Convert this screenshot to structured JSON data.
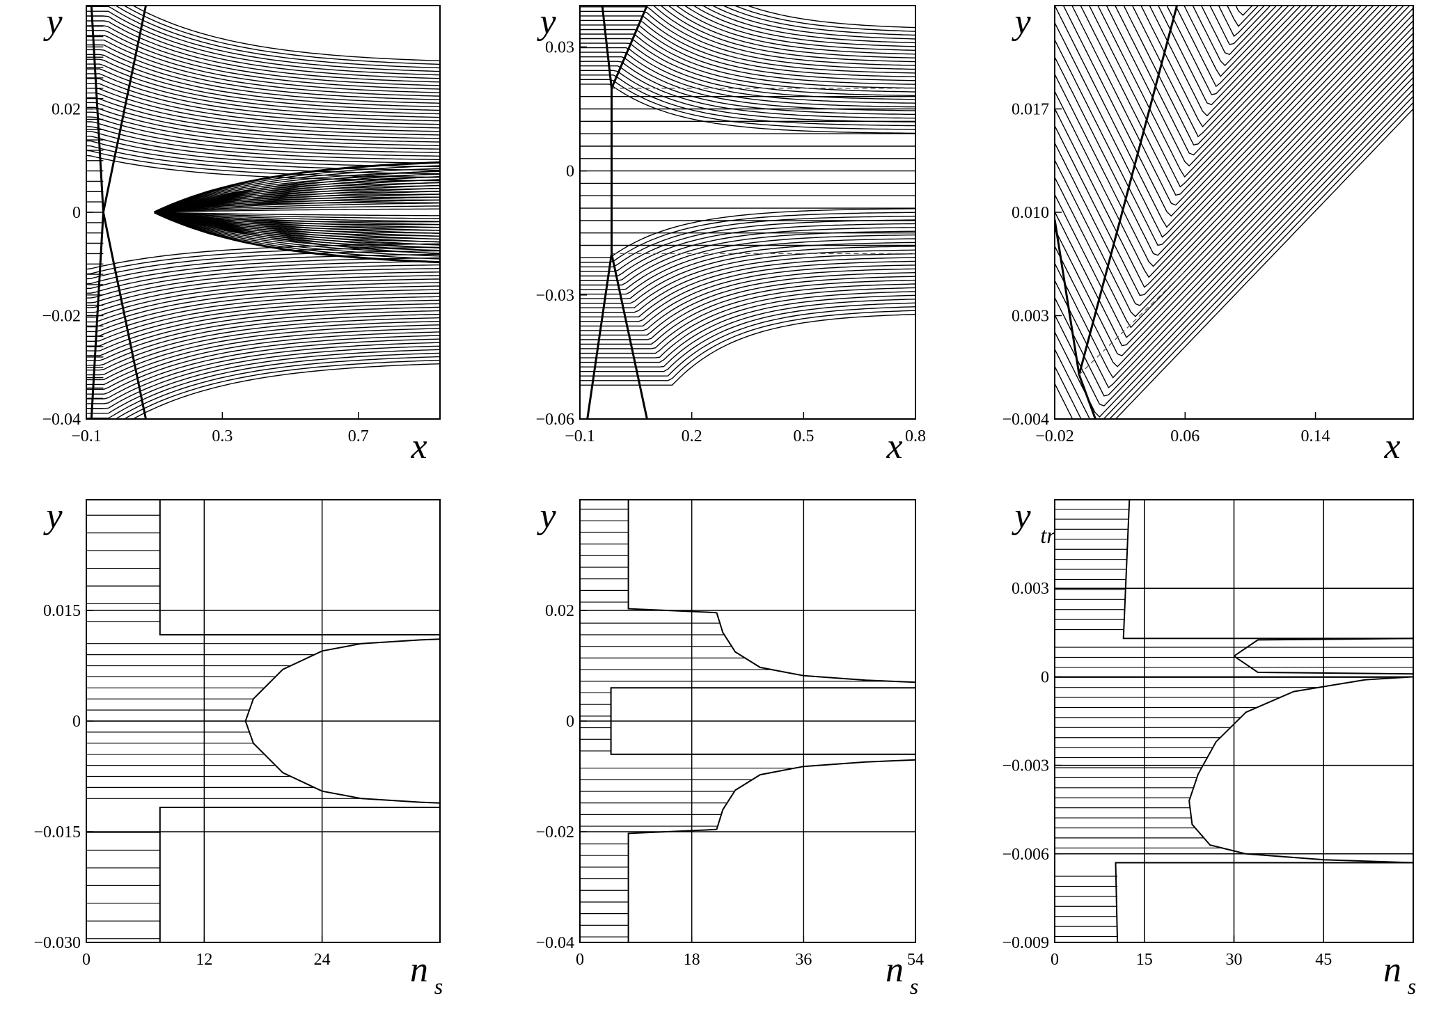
{
  "chart_data": [
    {
      "type": "line",
      "panel": "top-left",
      "xlabel": "x",
      "ylabel": "y",
      "xlim": [
        -0.1,
        0.94
      ],
      "ylim": [
        -0.04,
        0.04
      ],
      "xticks": [
        -0.1,
        0.3,
        0.7
      ],
      "xtick_labels": [
        "−0.1",
        "0.3",
        "0.7"
      ],
      "yticks": [
        -0.04,
        -0.02,
        0,
        0.02
      ],
      "ytick_labels": [
        "−0.04",
        "−0.02",
        "0",
        "0.02"
      ],
      "series": [
        {
          "values": "family of streamlines, y0 from -0.04 to 0.04; shock lines from (-0.08,0.04) to (-0.05,0) and from (0.05,0.04) to (-0.05,0); mirrored below"
        }
      ]
    },
    {
      "type": "line",
      "panel": "top-middle",
      "xlabel": "x",
      "ylabel": "y",
      "xlim": [
        -0.1,
        0.8
      ],
      "ylim": [
        -0.06,
        0.04
      ],
      "xticks": [
        -0.1,
        0.2,
        0.5,
        0.8
      ],
      "xtick_labels": [
        "−0.1",
        "0.2",
        "0.5",
        "0.8"
      ],
      "yticks": [
        -0.06,
        -0.03,
        0,
        0.03
      ],
      "ytick_labels": [
        "−0.06",
        "−0.03",
        "0",
        "0.03"
      ],
      "dashed_levels": [
        0.02,
        -0.02
      ],
      "series": [
        {
          "values": "streamlines; horizontal lines for |y|<0.02 after x=-0.015; curved upper/lower branches converging to y=+-0.009"
        }
      ]
    },
    {
      "type": "line",
      "panel": "top-right",
      "xlabel": "x",
      "ylabel": "y",
      "xlim": [
        -0.02,
        0.2
      ],
      "ylim": [
        -0.004,
        0.024
      ],
      "xticks": [
        -0.02,
        0.06,
        0.14
      ],
      "xtick_labels": [
        "−0.02",
        "0.06",
        "0.14"
      ],
      "yticks": [
        -0.004,
        0.003,
        0.01,
        0.017
      ],
      "ytick_labels": [
        "−0.004",
        "0.003",
        "0.010",
        "0.017"
      ],
      "series": [
        {
          "values": "streamlines descending to a minimum near x~0.06 and rising with slope ~0.11 toward the upper right"
        }
      ]
    },
    {
      "type": "line",
      "panel": "bottom-left",
      "xlabel": "n",
      "xlabel_sub": "s",
      "ylabel": "y",
      "xlim": [
        0,
        36
      ],
      "ylim": [
        -0.03,
        0.03
      ],
      "xticks": [
        0,
        12,
        24
      ],
      "xtick_labels": [
        "0",
        "12",
        "24"
      ],
      "yticks": [
        -0.03,
        -0.015,
        0,
        0.015
      ],
      "ytick_labels": [
        "−0.030",
        "−0.015",
        "0",
        "0.015"
      ],
      "series": [
        {
          "name_hidden": "outer step",
          "values": [
            [
              7.5,
              0.03
            ],
            [
              7.5,
              0.0117
            ],
            [
              36,
              0.0117
            ]
          ]
        },
        {
          "name_hidden": "inner curve",
          "values": [
            [
              36,
              0.0111
            ],
            [
              34,
              0.011
            ],
            [
              28,
              0.0105
            ],
            [
              24,
              0.0095
            ],
            [
              20,
              0.007
            ],
            [
              17,
              0.003
            ],
            [
              16.2,
              0
            ],
            [
              17,
              -0.003
            ],
            [
              20,
              -0.007
            ],
            [
              24,
              -0.0095
            ],
            [
              28,
              -0.0105
            ],
            [
              34,
              -0.011
            ],
            [
              36,
              -0.0111
            ]
          ]
        }
      ]
    },
    {
      "type": "line",
      "panel": "bottom-middle",
      "xlabel": "n",
      "xlabel_sub": "s",
      "ylabel": "y",
      "xlim": [
        0,
        54
      ],
      "ylim": [
        -0.04,
        0.04
      ],
      "xticks": [
        0,
        18,
        36,
        54
      ],
      "xtick_labels": [
        "0",
        "18",
        "36",
        "54"
      ],
      "yticks": [
        -0.04,
        -0.02,
        0,
        0.02
      ],
      "ytick_labels": [
        "−0.04",
        "−0.02",
        "0",
        "0.02"
      ],
      "series": [
        {
          "name_hidden": "outer step",
          "values": [
            [
              7.8,
              0.04
            ],
            [
              7.8,
              0.0203
            ],
            [
              22,
              0.0196
            ]
          ]
        },
        {
          "name_hidden": "branch",
          "values": [
            [
              22,
              0.0196
            ],
            [
              23,
              0.016
            ],
            [
              25,
              0.0125
            ],
            [
              29,
              0.0097
            ],
            [
              36,
              0.0082
            ],
            [
              46,
              0.0074
            ],
            [
              54,
              0.007
            ]
          ]
        },
        {
          "name_hidden": "inner box",
          "values": [
            [
              54,
              0.006
            ],
            [
              5,
              0.006
            ],
            [
              5,
              -0.006
            ],
            [
              54,
              -0.006
            ]
          ]
        }
      ]
    },
    {
      "type": "line",
      "panel": "bottom-right",
      "xlabel": "n",
      "xlabel_sub": "s",
      "ylabel": "y",
      "ylabel_sub": "tr",
      "xlim": [
        0,
        60
      ],
      "ylim": [
        -0.009,
        0.006
      ],
      "xticks": [
        0,
        15,
        30,
        45
      ],
      "xtick_labels": [
        "0",
        "15",
        "30",
        "45"
      ],
      "yticks": [
        -0.009,
        -0.006,
        -0.003,
        0,
        0.003
      ],
      "ytick_labels": [
        "−0.009",
        "−0.006",
        "−0.003",
        "0",
        "0.003"
      ],
      "series": [
        {
          "name_hidden": "upper step",
          "values": [
            [
              12.5,
              0.006
            ],
            [
              11.5,
              0.0013
            ],
            [
              60,
              0.0013
            ]
          ]
        },
        {
          "name_hidden": "lower curve",
          "values": [
            [
              60,
              0
            ],
            [
              52,
              -0.0001
            ],
            [
              40,
              -0.0005
            ],
            [
              32,
              -0.0012
            ],
            [
              27,
              -0.0022
            ],
            [
              24,
              -0.0033
            ],
            [
              22.5,
              -0.0042
            ],
            [
              23,
              -0.005
            ],
            [
              26,
              -0.0057
            ],
            [
              32,
              -0.006
            ],
            [
              45,
              -0.0062
            ],
            [
              60,
              -0.0063
            ]
          ]
        }
      ]
    }
  ]
}
